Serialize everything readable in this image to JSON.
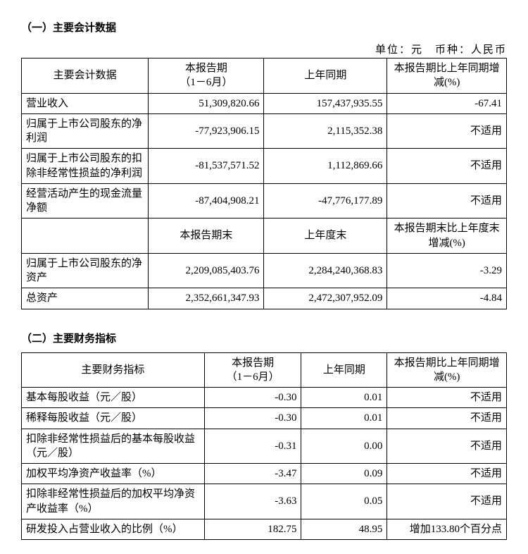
{
  "section1": {
    "title": "（一）主要会计数据",
    "unit": "单位：元　币种：人民币",
    "headers1": {
      "col1": "主要会计数据",
      "col2": "本报告期\n（1－6月）",
      "col3": "上年同期",
      "col4": "本报告期比上年同期增减(%)"
    },
    "rows1": [
      {
        "label": "营业收入",
        "v1": "51,309,820.66",
        "v2": "157,437,935.55",
        "chg": "-67.41"
      },
      {
        "label": "归属于上市公司股东的净利润",
        "v1": "-77,923,906.15",
        "v2": "2,115,352.38",
        "chg": "不适用"
      },
      {
        "label": "归属于上市公司股东的扣除非经常性损益的净利润",
        "v1": "-81,537,571.52",
        "v2": "1,112,869.66",
        "chg": "不适用"
      },
      {
        "label": "经营活动产生的现金流量净额",
        "v1": "-87,404,908.21",
        "v2": "-47,776,177.89",
        "chg": "不适用"
      }
    ],
    "headers2": {
      "col2": "本报告期末",
      "col3": "上年度末",
      "col4": "本报告期末比上年度末增减(%)"
    },
    "rows2": [
      {
        "label": "归属于上市公司股东的净资产",
        "v1": "2,209,085,403.76",
        "v2": "2,284,240,368.83",
        "chg": "-3.29"
      },
      {
        "label": "总资产",
        "v1": "2,352,661,347.93",
        "v2": "2,472,307,952.09",
        "chg": "-4.84"
      }
    ]
  },
  "section2": {
    "title": "（二）主要财务指标",
    "headers": {
      "col1": "主要财务指标",
      "col2": "本报告期\n（1－6月）",
      "col3": "上年同期",
      "col4": "本报告期比上年同期增减(%)"
    },
    "rows": [
      {
        "label": "基本每股收益（元／股）",
        "v1": "-0.30",
        "v2": "0.01",
        "chg": "不适用"
      },
      {
        "label": "稀释每股收益（元／股）",
        "v1": "-0.30",
        "v2": "0.01",
        "chg": "不适用"
      },
      {
        "label": "扣除非经常性损益后的基本每股收益（元／股）",
        "v1": "-0.31",
        "v2": "0.00",
        "chg": "不适用"
      },
      {
        "label": "加权平均净资产收益率（%）",
        "v1": "-3.47",
        "v2": "0.09",
        "chg": "不适用"
      },
      {
        "label": "扣除非经常性损益后的加权平均净资产收益率（%）",
        "v1": "-3.63",
        "v2": "0.05",
        "chg": "不适用"
      },
      {
        "label": "研发投入占营业收入的比例（%）",
        "v1": "182.75",
        "v2": "48.95",
        "chg": "增加133.80个百分点"
      }
    ]
  }
}
